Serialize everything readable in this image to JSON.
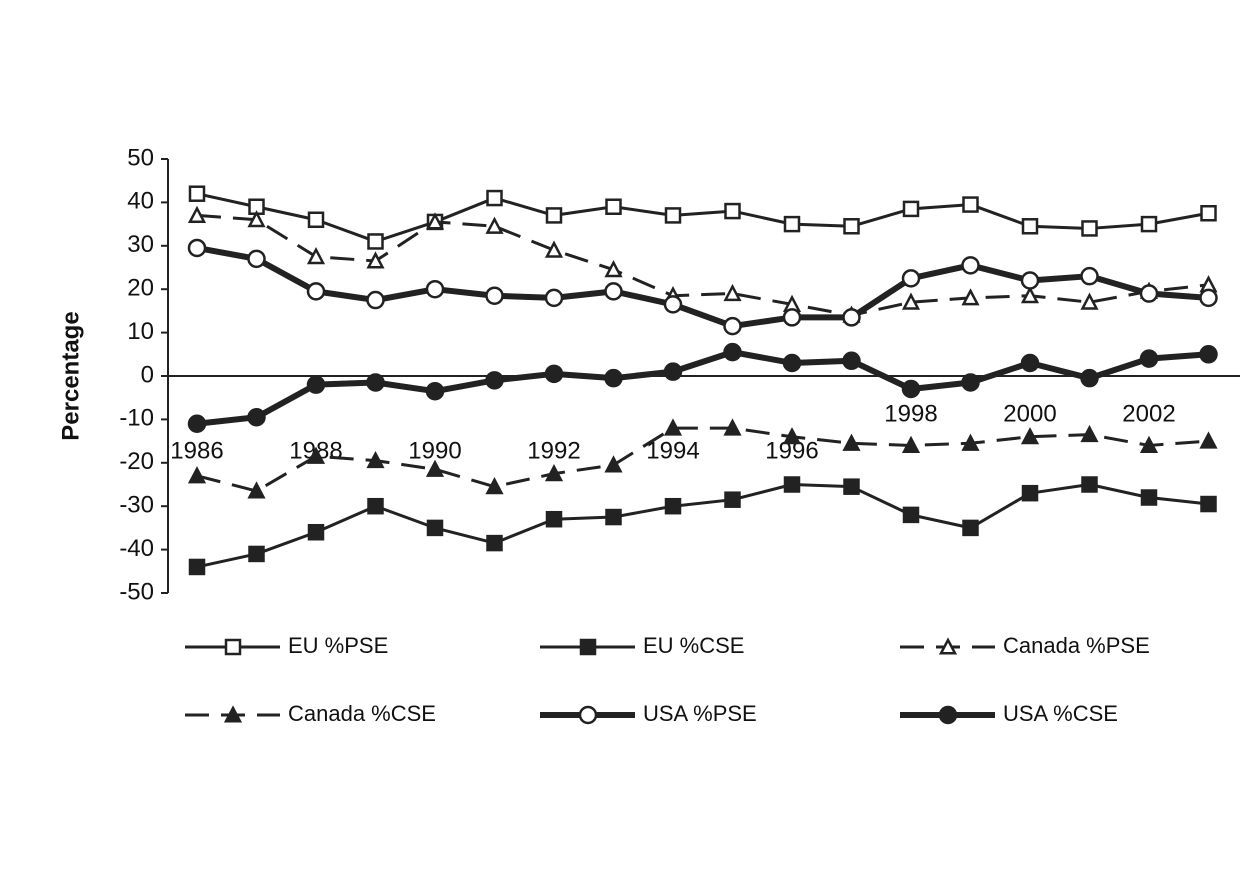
{
  "chart_data": {
    "type": "line",
    "y_label": "Percentage",
    "categories": [
      "1986",
      null,
      "1988",
      null,
      "1990",
      null,
      "1992",
      null,
      "1994",
      null,
      "1996",
      null,
      "1998",
      null,
      "2000",
      null,
      "2002",
      null
    ],
    "ylim": [
      -50,
      50
    ],
    "yticks": [
      -50,
      -40,
      -30,
      -20,
      -10,
      0,
      10,
      20,
      30,
      40,
      50
    ],
    "grid": false,
    "legend": "bottom",
    "series": [
      {
        "name": "EU %PSE",
        "color": "#222222",
        "marker": "square",
        "filled": false,
        "dashed": false,
        "thick": false,
        "values": [
          42,
          39,
          36,
          31,
          35.5,
          41,
          37,
          39,
          37,
          38,
          35,
          34.5,
          38.5,
          39.5,
          34.5,
          34,
          35,
          37.5
        ]
      },
      {
        "name": "EU %CSE",
        "color": "#222222",
        "marker": "square",
        "filled": true,
        "dashed": false,
        "thick": false,
        "values": [
          -44,
          -41,
          -36,
          -30,
          -35,
          -38.5,
          -33,
          -32.5,
          -30,
          -28.5,
          -25,
          -25.5,
          -32,
          -35,
          -27,
          -25,
          -28,
          -29.5
        ]
      },
      {
        "name": "Canada %PSE",
        "color": "#222222",
        "marker": "triangle",
        "filled": false,
        "dashed": true,
        "thick": false,
        "values": [
          37,
          36,
          27.5,
          26.5,
          35.5,
          34.5,
          29,
          24.5,
          18.5,
          19,
          16.5,
          14,
          17,
          18,
          18.5,
          17,
          19.5,
          21
        ]
      },
      {
        "name": "Canada %CSE",
        "color": "#222222",
        "marker": "triangle",
        "filled": true,
        "dashed": true,
        "thick": false,
        "values": [
          -23,
          -26.5,
          -18.5,
          -19.5,
          -21.5,
          -25.5,
          -22.5,
          -20.5,
          -12,
          -12,
          -14,
          -15.5,
          -16,
          -15.5,
          -14,
          -13.5,
          -16,
          -15
        ]
      },
      {
        "name": "USA %PSE",
        "color": "#222222",
        "marker": "circle",
        "filled": false,
        "dashed": false,
        "thick": true,
        "values": [
          29.5,
          27,
          19.5,
          17.5,
          20,
          18.5,
          18,
          19.5,
          16.5,
          11.5,
          13.5,
          13.5,
          22.5,
          25.5,
          22,
          23,
          19,
          18
        ]
      },
      {
        "name": "USA %CSE",
        "color": "#222222",
        "marker": "circle",
        "filled": true,
        "dashed": false,
        "thick": true,
        "values": [
          -11,
          -9.5,
          -2,
          -1.5,
          -3.5,
          -1,
          0.5,
          -0.5,
          1,
          5.5,
          3,
          3.5,
          -3,
          -1.5,
          3,
          -0.5,
          4,
          5
        ]
      }
    ]
  }
}
